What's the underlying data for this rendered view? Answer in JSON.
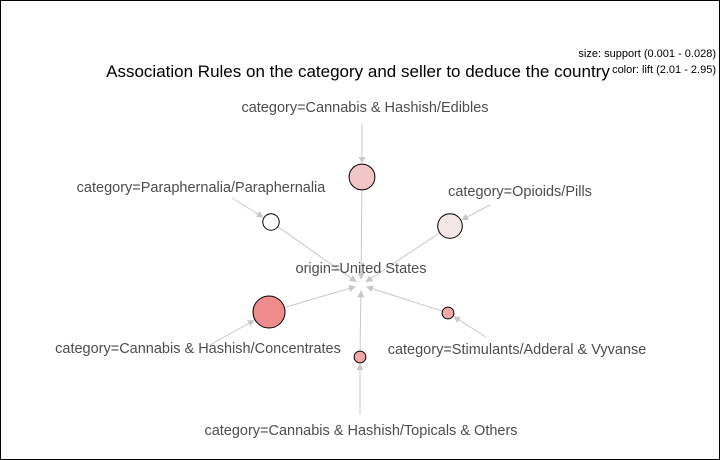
{
  "title": "Association Rules on the category and seller to deduce the country",
  "legend": {
    "size_label": "size: support (0.001 - 0.028)",
    "color_label": "color: lift (2.01 - 2.95)"
  },
  "center_node": "origin=United States",
  "rules": [
    {
      "item": "category=Cannabis & Hashish/Edibles",
      "support": 0.016,
      "lift": 2.55,
      "fill": "#f2c6c6"
    },
    {
      "item": "category=Opioids/Pills",
      "support": 0.014,
      "lift": 2.2,
      "fill": "#f2e6e6"
    },
    {
      "item": "category=Stimulants/Adderal & Vyvanse",
      "support": 0.001,
      "lift": 2.9,
      "fill": "#f0a8a8"
    },
    {
      "item": "category=Cannabis & Hashish/Topicals & Others",
      "support": 0.001,
      "lift": 2.9,
      "fill": "#f0a8a8"
    },
    {
      "item": "category=Cannabis & Hashish/Concentrates",
      "support": 0.028,
      "lift": 2.95,
      "fill": "#f08c8c"
    },
    {
      "item": "category=Paraphernalia/Paraphernalia",
      "support": 0.004,
      "lift": 2.01,
      "fill": "#ffffff"
    }
  ]
}
